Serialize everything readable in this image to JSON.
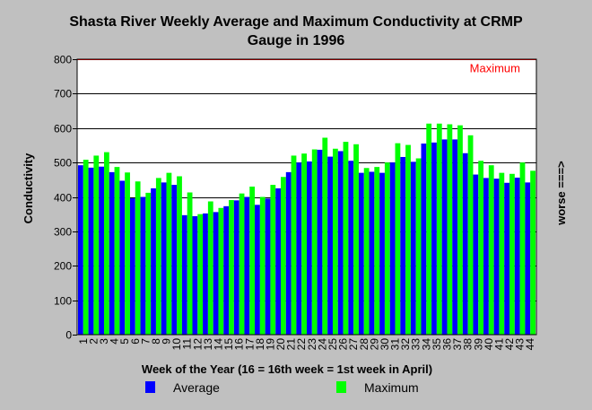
{
  "chart_data": {
    "type": "bar",
    "title_lines": [
      "Shasta River Weekly Average and Maximum Conductivity at CRMP",
      "Gauge in 1996"
    ],
    "xlabel": "Week of the Year (16 = 16th week = 1st week in April)",
    "ylabel": "Conductivity",
    "right_label": "worse ===>",
    "ylim": [
      0,
      800
    ],
    "yticks": [
      0,
      100,
      200,
      300,
      400,
      500,
      600,
      700,
      800
    ],
    "grid": true,
    "reference_line": {
      "label": "Maximum",
      "value": 800,
      "color": "#ff0000"
    },
    "categories": [
      "1",
      "2",
      "3",
      "4",
      "5",
      "6",
      "7",
      "8",
      "9",
      "10",
      "11",
      "12",
      "13",
      "14",
      "15",
      "16",
      "17",
      "18",
      "19",
      "20",
      "21",
      "22",
      "23",
      "24",
      "25",
      "26",
      "27",
      "28",
      "29",
      "30",
      "31",
      "32",
      "33",
      "34",
      "35",
      "36",
      "37",
      "38",
      "39",
      "40",
      "41",
      "42",
      "43",
      "44"
    ],
    "series": [
      {
        "name": "Average",
        "color": "#0000ff",
        "values": [
          492,
          485,
          488,
          472,
          447,
          396,
          400,
          425,
          442,
          435,
          347,
          344,
          352,
          356,
          373,
          390,
          400,
          377,
          395,
          425,
          472,
          500,
          503,
          537,
          517,
          533,
          505,
          470,
          473,
          470,
          500,
          516,
          502,
          555,
          558,
          567,
          567,
          527,
          465,
          455,
          453,
          441,
          456,
          442
        ]
      },
      {
        "name": "Maximum",
        "color": "#00ff00",
        "values": [
          508,
          520,
          530,
          487,
          471,
          445,
          412,
          455,
          470,
          460,
          413,
          350,
          387,
          368,
          391,
          410,
          430,
          400,
          435,
          458,
          520,
          526,
          538,
          572,
          540,
          560,
          553,
          484,
          487,
          500,
          556,
          551,
          512,
          613,
          613,
          611,
          608,
          579,
          505,
          492,
          470,
          467,
          500,
          476
        ]
      }
    ]
  },
  "legend": [
    {
      "label": "Average",
      "color": "#0000ff"
    },
    {
      "label": "Maximum",
      "color": "#00ff00"
    }
  ]
}
